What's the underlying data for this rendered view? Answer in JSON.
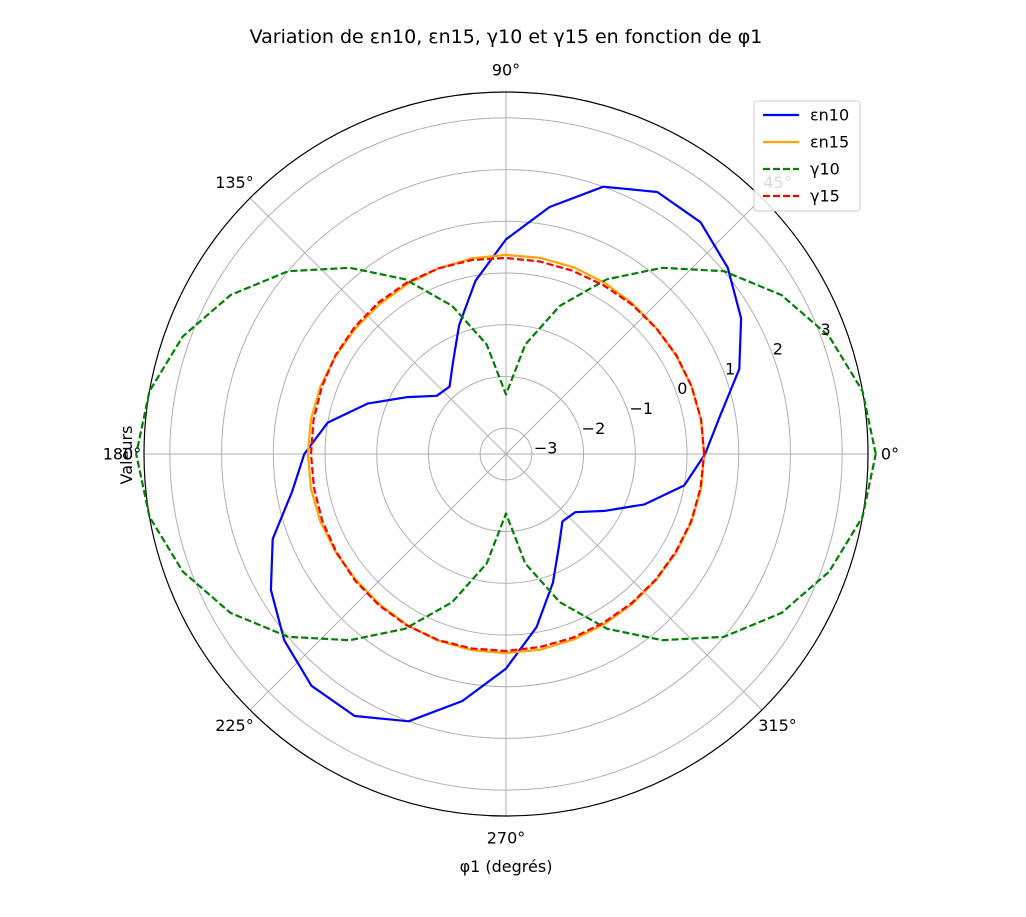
{
  "chart_data": {
    "type": "line",
    "projection": "polar",
    "title": "Variation de εn10, εn15, γ10 et γ15 en fonction de φ1",
    "xlabel": "φ1 (degrés)",
    "ylabel": "Valeurs",
    "angle_ticks": [
      "0°",
      "45°",
      "90°",
      "135°",
      "180°",
      "225°",
      "270°",
      "315°"
    ],
    "r_ticks": [
      "−3",
      "−2",
      "−1",
      "0",
      "1",
      "2",
      "3"
    ],
    "r_tick_values": [
      -3,
      -2,
      -1,
      0,
      1,
      2,
      3
    ],
    "rlim": [
      -3.5,
      3.5
    ],
    "grid": true,
    "legend_position": "upper right",
    "x": [
      0,
      10,
      20,
      30,
      40,
      50,
      60,
      70,
      80,
      90,
      100,
      110,
      120,
      130,
      140,
      150,
      160,
      170,
      180,
      190,
      200,
      210,
      220,
      230,
      240,
      250,
      260,
      270,
      280,
      290,
      300,
      310,
      320,
      330,
      340,
      350,
      360
    ],
    "series": [
      {
        "name": "εn10",
        "color": "#0000ff",
        "dash": "solid",
        "values": [
          0.35,
          0.7,
          1.3,
          1.75,
          2.1,
          2.35,
          2.35,
          2.0,
          1.35,
          0.65,
          -0.1,
          -0.85,
          -1.45,
          -1.8,
          -1.75,
          -1.3,
          -0.65,
          0.0,
          0.4,
          0.7,
          1.3,
          1.75,
          2.1,
          2.35,
          2.35,
          2.0,
          1.35,
          0.65,
          -0.1,
          -0.85,
          -1.45,
          -1.8,
          -1.75,
          -1.3,
          -0.65,
          0.0,
          0.35
        ]
      },
      {
        "name": "εn15",
        "color": "#ffa500",
        "dash": "solid",
        "values": [
          0.33,
          0.33,
          0.32,
          0.3,
          0.29,
          0.3,
          0.32,
          0.34,
          0.35,
          0.35,
          0.34,
          0.32,
          0.3,
          0.29,
          0.29,
          0.3,
          0.32,
          0.33,
          0.33,
          0.33,
          0.32,
          0.3,
          0.29,
          0.3,
          0.32,
          0.34,
          0.35,
          0.35,
          0.34,
          0.32,
          0.3,
          0.29,
          0.29,
          0.3,
          0.32,
          0.33,
          0.33
        ]
      },
      {
        "name": "γ10",
        "color": "#008000",
        "dash": "dashed",
        "values": [
          3.65,
          3.5,
          3.15,
          2.65,
          2.0,
          1.2,
          0.4,
          -0.45,
          -1.35,
          -2.35,
          -1.35,
          -0.45,
          0.4,
          1.2,
          2.0,
          2.65,
          3.15,
          3.5,
          3.65,
          3.5,
          3.15,
          2.65,
          2.0,
          1.2,
          0.4,
          -0.45,
          -1.35,
          -2.35,
          -1.35,
          -0.45,
          0.4,
          1.2,
          2.0,
          2.65,
          3.15,
          3.5,
          3.65
        ]
      },
      {
        "name": "γ15",
        "color": "#ff0000",
        "dash": "dashed",
        "values": [
          0.33,
          0.33,
          0.32,
          0.31,
          0.29,
          0.28,
          0.27,
          0.27,
          0.28,
          0.29,
          0.31,
          0.32,
          0.33,
          0.33,
          0.32,
          0.31,
          0.29,
          0.28,
          0.27,
          0.27,
          0.28,
          0.29,
          0.31,
          0.32,
          0.33,
          0.33,
          0.32,
          0.31,
          0.29,
          0.28,
          0.27,
          0.27,
          0.28,
          0.29,
          0.31,
          0.32,
          0.33
        ]
      }
    ]
  }
}
